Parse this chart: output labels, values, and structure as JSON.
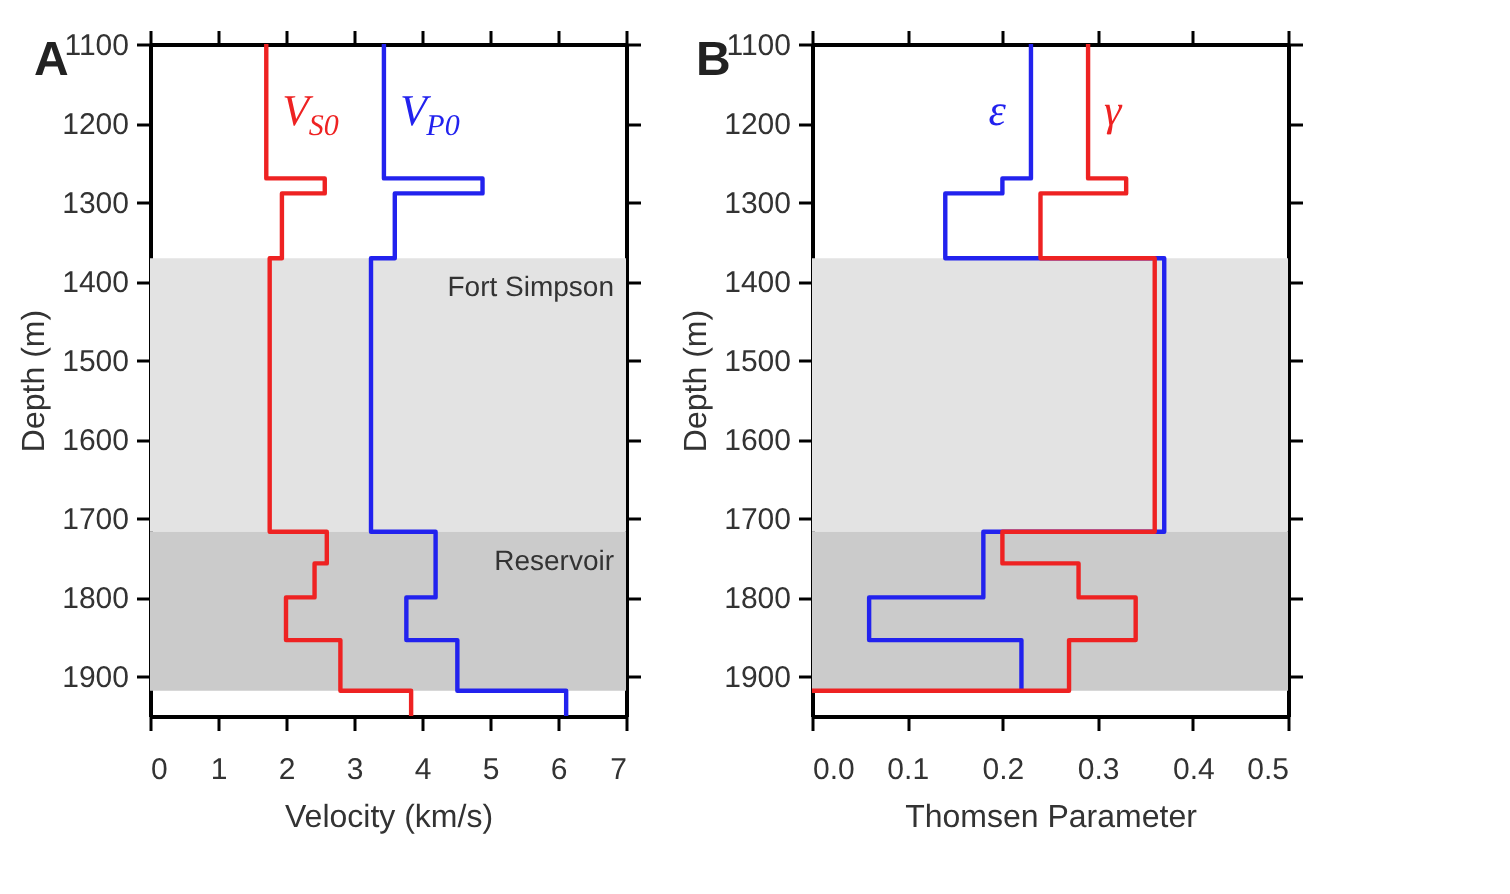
{
  "chart_data": [
    {
      "type": "line",
      "title": "A",
      "xlabel": "Velocity (km/s)",
      "ylabel": "Depth (m)",
      "xlim": [
        0,
        7
      ],
      "xticks": [
        0,
        1,
        2,
        3,
        4,
        5,
        6,
        7
      ],
      "ylim": [
        1950,
        1100
      ],
      "yticks": [
        1100,
        1200,
        1300,
        1400,
        1500,
        1600,
        1700,
        1800,
        1900
      ],
      "bands": [
        {
          "axis": "y",
          "from": 1371,
          "to": 1717,
          "label": "Fort Simpson",
          "color": "#e3e3e3"
        },
        {
          "axis": "y",
          "from": 1717,
          "to": 1918,
          "label": "Reservoir",
          "color": "#cbcbcb"
        }
      ],
      "series": [
        {
          "name": "V$_{S0}$",
          "color": "#ee2222",
          "x": [
            1.71,
            1.71,
            2.57,
            2.57,
            1.94,
            1.94,
            1.76,
            1.76,
            2.6,
            2.6,
            2.42,
            2.42,
            2.0,
            2.0,
            2.8,
            2.8,
            3.84,
            3.84
          ],
          "values": [
            1100,
            1270,
            1270,
            1289,
            1289,
            1371,
            1371,
            1717,
            1717,
            1757,
            1757,
            1800,
            1800,
            1854,
            1854,
            1918,
            1918,
            1950
          ]
        },
        {
          "name": "V$_{P0}$",
          "color": "#2222ee",
          "x": [
            3.44,
            3.44,
            4.89,
            4.89,
            3.6,
            3.6,
            3.25,
            3.25,
            4.2,
            4.2,
            3.77,
            3.77,
            4.52,
            4.52,
            6.12,
            6.12
          ],
          "values": [
            1100,
            1270,
            1270,
            1289,
            1289,
            1371,
            1371,
            1717,
            1717,
            1800,
            1800,
            1854,
            1854,
            1918,
            1918,
            1950
          ]
        }
      ]
    },
    {
      "type": "line",
      "title": "B",
      "xlabel": "Thomsen Parameter",
      "ylabel": "Depth (m)",
      "xlim": [
        0,
        0.5
      ],
      "xticks": [
        {
          "value": 0,
          "label": "0.0"
        },
        0.1,
        0.2,
        0.3,
        0.4,
        0.5
      ],
      "ylim": [
        1950,
        1100
      ],
      "yticks": [
        1100,
        1200,
        1300,
        1400,
        1500,
        1600,
        1700,
        1800,
        1900
      ],
      "bands": [
        {
          "axis": "y",
          "from": 1371,
          "to": 1717,
          "color": "#e3e3e3"
        },
        {
          "axis": "y",
          "from": 1717,
          "to": 1918,
          "color": "#cbcbcb"
        }
      ],
      "series": [
        {
          "name": "ε",
          "color": "#2222ee",
          "x": [
            0.23,
            0.23,
            0.2,
            0.2,
            0.14,
            0.14,
            0.37,
            0.37,
            0.18,
            0.18,
            0.06,
            0.06,
            0.22,
            0.22
          ],
          "values": [
            1100,
            1270,
            1270,
            1289,
            1289,
            1371,
            1371,
            1717,
            1717,
            1800,
            1800,
            1854,
            1854,
            1918
          ]
        },
        {
          "name": "γ",
          "color": "#ee2222",
          "x": [
            0.29,
            0.29,
            0.33,
            0.33,
            0.24,
            0.24,
            0.36,
            0.36,
            0.2,
            0.2,
            0.28,
            0.28,
            0.34,
            0.34,
            0.27,
            0.27,
            0
          ],
          "values": [
            1100,
            1270,
            1270,
            1289,
            1289,
            1371,
            1371,
            1717,
            1717,
            1757,
            1757,
            1800,
            1800,
            1854,
            1854,
            1918,
            1918
          ]
        }
      ]
    }
  ]
}
